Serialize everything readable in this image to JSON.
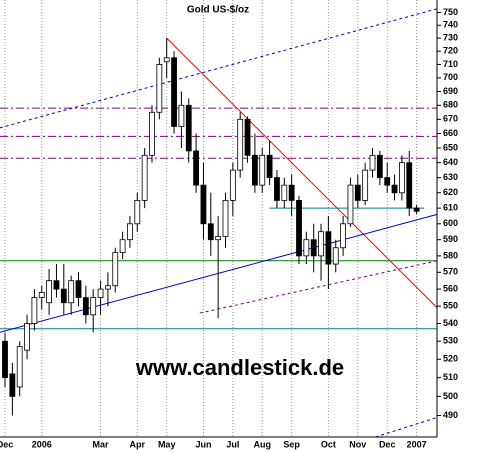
{
  "chart_data": {
    "type": "candlestick",
    "title": "Gold US-$/oz",
    "watermark": "www.candlestick.de",
    "categories": [
      "Dec",
      null,
      null,
      null,
      null,
      "2006",
      null,
      null,
      null,
      null,
      null,
      null,
      null,
      "Mar",
      null,
      null,
      null,
      null,
      "Apr",
      null,
      null,
      null,
      "May",
      null,
      null,
      null,
      null,
      "Jun",
      null,
      null,
      null,
      "Jul",
      null,
      null,
      null,
      "Aug",
      null,
      null,
      null,
      "Sep",
      null,
      null,
      null,
      null,
      "Oct",
      null,
      null,
      null,
      "Nov",
      null,
      null,
      null,
      "Dec",
      null,
      null,
      null,
      "2007"
    ],
    "open": [
      530,
      512,
      505,
      525,
      540,
      555,
      552,
      565,
      560,
      552,
      565,
      555,
      545,
      555,
      560,
      562,
      582,
      590,
      600,
      615,
      645,
      675,
      712,
      715,
      665,
      680,
      648,
      625,
      600,
      590,
      592,
      615,
      635,
      670,
      645,
      625,
      645,
      630,
      615,
      625,
      615,
      580,
      590,
      580,
      595,
      575,
      585,
      600,
      625,
      615,
      635,
      645,
      630,
      625,
      620,
      640,
      610
    ],
    "high": [
      535,
      518,
      530,
      545,
      560,
      562,
      572,
      575,
      575,
      568,
      570,
      562,
      560,
      565,
      570,
      585,
      595,
      605,
      620,
      650,
      680,
      715,
      730,
      720,
      690,
      685,
      660,
      640,
      620,
      605,
      620,
      640,
      675,
      672,
      660,
      650,
      655,
      635,
      630,
      632,
      618,
      595,
      600,
      600,
      605,
      590,
      605,
      630,
      632,
      640,
      650,
      648,
      640,
      632,
      645,
      648,
      612
    ],
    "low": [
      505,
      490,
      500,
      520,
      536,
      548,
      545,
      555,
      545,
      545,
      550,
      540,
      535,
      545,
      550,
      558,
      578,
      585,
      595,
      610,
      640,
      670,
      700,
      660,
      650,
      640,
      620,
      590,
      580,
      543,
      585,
      605,
      630,
      640,
      620,
      620,
      625,
      610,
      610,
      605,
      575,
      575,
      570,
      565,
      560,
      570,
      580,
      598,
      610,
      612,
      630,
      625,
      620,
      615,
      615,
      605,
      606
    ],
    "close": [
      510,
      500,
      527,
      540,
      555,
      558,
      565,
      560,
      552,
      565,
      555,
      545,
      555,
      560,
      562,
      582,
      590,
      600,
      615,
      645,
      675,
      710,
      715,
      665,
      680,
      648,
      625,
      600,
      590,
      592,
      615,
      635,
      670,
      645,
      625,
      645,
      630,
      615,
      625,
      615,
      580,
      590,
      580,
      595,
      575,
      585,
      600,
      625,
      615,
      635,
      645,
      630,
      625,
      620,
      640,
      610,
      608
    ],
    "up_color": "#ffffff",
    "down_color": "#000000",
    "ylim": [
      479,
      760
    ],
    "log": true,
    "yticks": [
      490,
      500,
      510,
      520,
      530,
      540,
      550,
      560,
      570,
      580,
      590,
      600,
      610,
      620,
      630,
      640,
      650,
      660,
      670,
      680,
      690,
      700,
      710,
      720,
      730,
      740,
      750
    ],
    "grid": true,
    "hlines": [
      {
        "value": 678,
        "color": "#800080",
        "dash": "dashdot"
      },
      {
        "value": 658,
        "color": "#800080",
        "dash": "dashdot"
      },
      {
        "value": 643,
        "color": "#800080",
        "dash": "dashdot"
      },
      {
        "value": 577,
        "color": "#008000",
        "dash": "solid"
      },
      {
        "value": 537,
        "color": "#008080",
        "dash": "solid"
      }
    ],
    "trendlines": [
      {
        "color": "#ff0000",
        "dash": "solid",
        "x": [
          22,
          58.8
        ],
        "y": [
          730,
          549
        ]
      },
      {
        "color": "#0000c0",
        "dash": "solid",
        "x": [
          -0.7,
          58.8
        ],
        "y": [
          535,
          606
        ]
      },
      {
        "color": "#0000c0",
        "dash": "dashed",
        "x": [
          -0.7,
          58.8
        ],
        "y": [
          664,
          753
        ]
      },
      {
        "color": "#0000c0",
        "dash": "dashed",
        "x": [
          50.4,
          58.8
        ],
        "y": [
          479,
          489
        ]
      },
      {
        "color": "#800080",
        "dash": "dashed",
        "x": [
          26.5,
          58.8
        ],
        "y": [
          546,
          577
        ]
      },
      {
        "color": "#008080",
        "dash": "solid",
        "x": [
          36,
          57
        ],
        "y": [
          610,
          610
        ]
      }
    ]
  }
}
